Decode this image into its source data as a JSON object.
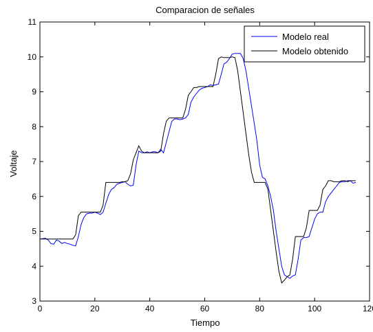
{
  "chart_data": {
    "type": "line",
    "title": "Comparacion de señales",
    "xlabel": "Tiempo",
    "ylabel": "Voltaje",
    "xlim": [
      0,
      120
    ],
    "ylim": [
      3,
      11
    ],
    "xticks": [
      0,
      20,
      40,
      60,
      80,
      100,
      120
    ],
    "yticks": [
      3,
      4,
      5,
      6,
      7,
      8,
      9,
      10,
      11
    ],
    "grid": false,
    "legend_position": "top-right",
    "series": [
      {
        "name": "Modelo real",
        "color": "#0000ff",
        "x": [
          0,
          2,
          3,
          4,
          5,
          6,
          7,
          8,
          9,
          10,
          11,
          12,
          13,
          14,
          15,
          16,
          17,
          18,
          19,
          20,
          21,
          22,
          23,
          24,
          25,
          26,
          27,
          28,
          29,
          30,
          31,
          32,
          33,
          34,
          35,
          36,
          37,
          38,
          39,
          40,
          41,
          42,
          43,
          44,
          45,
          46,
          47,
          48,
          49,
          50,
          51,
          52,
          53,
          54,
          55,
          56,
          57,
          58,
          59,
          60,
          61,
          62,
          63,
          64,
          65,
          66,
          67,
          68,
          69,
          70,
          71,
          72,
          73,
          74,
          75,
          76,
          77,
          78,
          79,
          80,
          81,
          82,
          83,
          84,
          85,
          86,
          87,
          88,
          89,
          90,
          91,
          92,
          93,
          94,
          95,
          96,
          97,
          98,
          99,
          100,
          101,
          102,
          103,
          104,
          105,
          106,
          107,
          108,
          109,
          110,
          111,
          112,
          113,
          114,
          115
        ],
        "values": [
          4.78,
          4.8,
          4.75,
          4.65,
          4.63,
          4.75,
          4.72,
          4.65,
          4.68,
          4.65,
          4.63,
          4.6,
          4.58,
          4.85,
          5.2,
          5.4,
          5.5,
          5.52,
          5.52,
          5.55,
          5.52,
          5.48,
          5.55,
          5.8,
          6.05,
          6.2,
          6.25,
          6.35,
          6.38,
          6.4,
          6.42,
          6.35,
          6.3,
          6.32,
          6.9,
          7.3,
          7.25,
          7.25,
          7.28,
          7.25,
          7.28,
          7.28,
          7.25,
          7.35,
          7.25,
          7.55,
          7.85,
          8.15,
          8.22,
          8.22,
          8.2,
          8.22,
          8.25,
          8.35,
          8.7,
          8.85,
          8.95,
          9.05,
          9.1,
          9.12,
          9.15,
          9.2,
          9.18,
          9.2,
          9.22,
          9.5,
          9.8,
          9.85,
          9.95,
          10.08,
          10.1,
          10.1,
          10.1,
          9.95,
          9.6,
          9.1,
          8.6,
          8.1,
          7.6,
          6.9,
          6.55,
          6.5,
          6.3,
          6.0,
          5.6,
          5.0,
          4.5,
          4.0,
          3.75,
          3.7,
          3.65,
          3.72,
          3.75,
          4.2,
          4.75,
          4.82,
          4.82,
          4.85,
          5.1,
          5.35,
          5.5,
          5.55,
          5.55,
          5.85,
          6.0,
          6.1,
          6.2,
          6.3,
          6.4,
          6.42,
          6.42,
          6.45,
          6.45,
          6.38,
          6.4
        ]
      },
      {
        "name": "Modelo obtenido",
        "color": "#000000",
        "x": [
          0,
          1,
          2,
          3,
          4,
          5,
          6,
          7,
          8,
          9,
          10,
          11,
          12,
          13,
          14,
          15,
          16,
          17,
          18,
          19,
          20,
          21,
          22,
          23,
          24,
          25,
          26,
          27,
          28,
          29,
          30,
          31,
          32,
          33,
          34,
          35,
          36,
          37,
          38,
          39,
          40,
          41,
          42,
          43,
          44,
          45,
          46,
          47,
          48,
          49,
          50,
          51,
          52,
          53,
          54,
          55,
          56,
          57,
          58,
          59,
          60,
          61,
          62,
          63,
          64,
          65,
          66,
          67,
          68,
          69,
          70,
          71,
          72,
          73,
          74,
          75,
          76,
          77,
          78,
          79,
          80,
          81,
          82,
          83,
          84,
          85,
          86,
          87,
          88,
          89,
          90,
          91,
          92,
          93,
          94,
          95,
          96,
          97,
          98,
          99,
          100,
          101,
          102,
          103,
          104,
          105,
          106,
          107,
          108,
          109,
          110,
          111,
          112,
          113,
          114,
          115
        ],
        "values": [
          4.78,
          4.78,
          4.78,
          4.78,
          4.78,
          4.78,
          4.78,
          4.78,
          4.78,
          4.78,
          4.78,
          4.78,
          4.78,
          4.9,
          5.45,
          5.55,
          5.55,
          5.55,
          5.55,
          5.55,
          5.55,
          5.55,
          5.55,
          5.75,
          6.4,
          6.4,
          6.4,
          6.4,
          6.4,
          6.4,
          6.42,
          6.42,
          6.45,
          6.65,
          7.05,
          7.25,
          7.45,
          7.3,
          7.25,
          7.25,
          7.25,
          7.25,
          7.25,
          7.25,
          7.3,
          7.8,
          8.15,
          8.25,
          8.25,
          8.25,
          8.25,
          8.25,
          8.25,
          8.5,
          8.9,
          9.0,
          9.12,
          9.12,
          9.15,
          9.15,
          9.15,
          9.15,
          9.15,
          9.15,
          9.5,
          9.95,
          10.0,
          9.98,
          9.98,
          9.98,
          10.0,
          9.98,
          9.6,
          9.0,
          8.4,
          7.8,
          7.2,
          6.7,
          6.4,
          6.4,
          6.4,
          6.4,
          6.4,
          6.2,
          5.6,
          5.0,
          4.4,
          3.85,
          3.52,
          3.6,
          3.7,
          3.75,
          4.2,
          4.85,
          4.85,
          4.85,
          4.85,
          5.1,
          5.6,
          5.6,
          5.6,
          5.6,
          5.75,
          6.2,
          6.3,
          6.45,
          6.45,
          6.42,
          6.42,
          6.42,
          6.45,
          6.45,
          6.42,
          6.45,
          6.45,
          6.45
        ]
      }
    ]
  }
}
